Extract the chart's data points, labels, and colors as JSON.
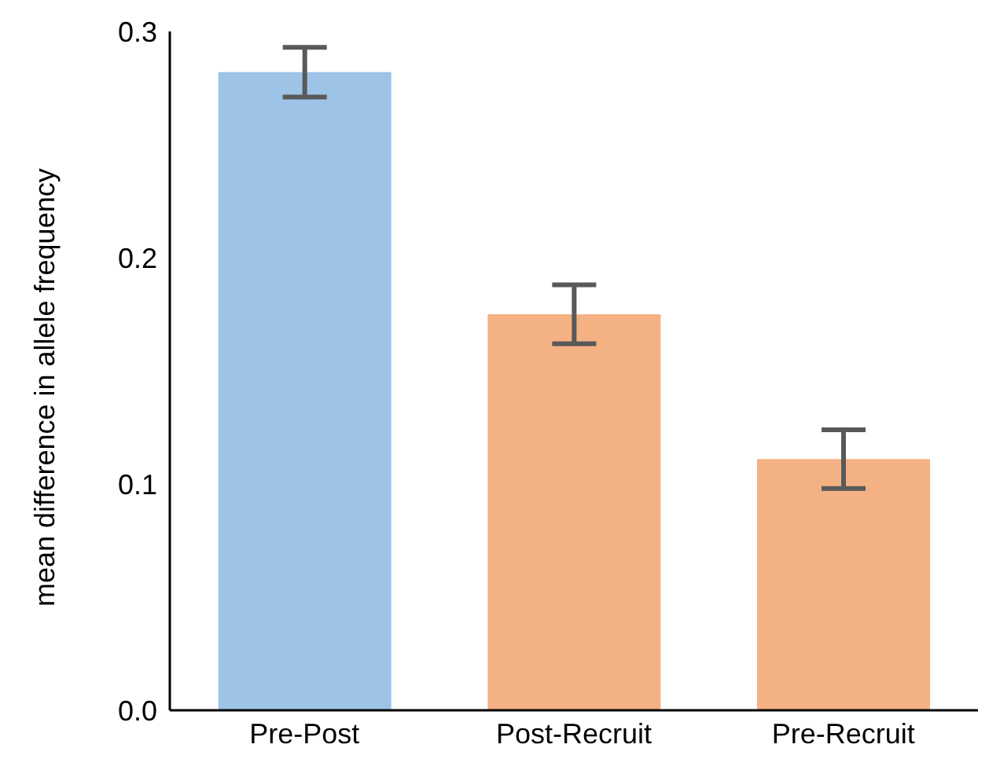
{
  "chart_data": {
    "type": "bar",
    "ylabel": "mean difference in allele frequency",
    "categories": [
      "Pre-Post",
      "Post-Recruit",
      "Pre-Recruit"
    ],
    "values": [
      0.282,
      0.175,
      0.111
    ],
    "colors": [
      "#9dc3e6",
      "#f4b183",
      "#f4b183"
    ],
    "errors": [
      0.011,
      0.013,
      0.013
    ],
    "ylim": [
      0,
      0.3
    ],
    "yticks": [
      {
        "value": 0,
        "label": "0.0"
      },
      {
        "value": 0.1,
        "label": "0.1"
      },
      {
        "value": 0.2,
        "label": "0.2"
      },
      {
        "value": 0.3,
        "label": "0.3"
      }
    ],
    "grid": false,
    "legend": false
  }
}
